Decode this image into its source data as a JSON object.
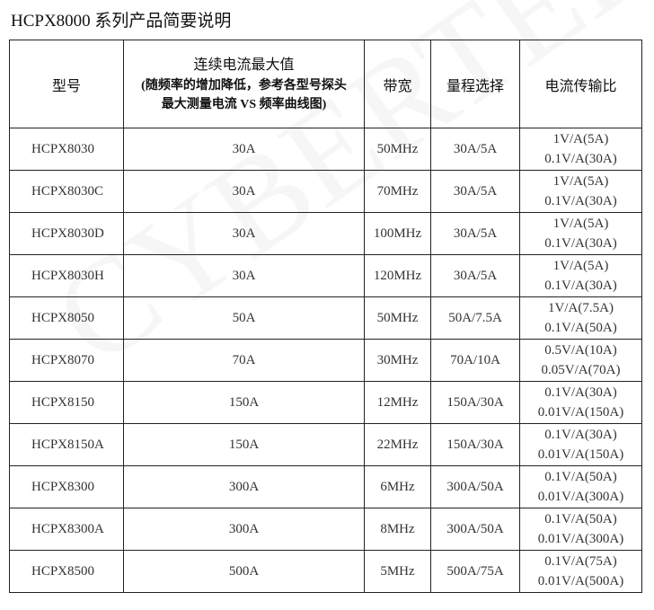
{
  "title": "HCPX8000 系列产品简要说明",
  "watermark": "CYBERTEK",
  "headers": {
    "model": "型号",
    "current_main": "连续电流最大值",
    "current_sub1": "(随频率的增加降低，参考各型号探头",
    "current_sub2": "最大测量电流 VS 频率曲线图)",
    "bandwidth": "带宽",
    "range": "量程选择",
    "ratio": "电流传输比"
  },
  "rows": [
    {
      "model": "HCPX8030",
      "current": "30A",
      "bandwidth": "50MHz",
      "range": "30A/5A",
      "ratio1": "1V/A(5A)",
      "ratio2": "0.1V/A(30A)"
    },
    {
      "model": "HCPX8030C",
      "current": "30A",
      "bandwidth": "70MHz",
      "range": "30A/5A",
      "ratio1": "1V/A(5A)",
      "ratio2": "0.1V/A(30A)"
    },
    {
      "model": "HCPX8030D",
      "current": "30A",
      "bandwidth": "100MHz",
      "range": "30A/5A",
      "ratio1": "1V/A(5A)",
      "ratio2": "0.1V/A(30A)"
    },
    {
      "model": "HCPX8030H",
      "current": "30A",
      "bandwidth": "120MHz",
      "range": "30A/5A",
      "ratio1": "1V/A(5A)",
      "ratio2": "0.1V/A(30A)"
    },
    {
      "model": "HCPX8050",
      "current": "50A",
      "bandwidth": "50MHz",
      "range": "50A/7.5A",
      "ratio1": "1V/A(7.5A)",
      "ratio2": "0.1V/A(50A)"
    },
    {
      "model": "HCPX8070",
      "current": "70A",
      "bandwidth": "30MHz",
      "range": "70A/10A",
      "ratio1": "0.5V/A(10A)",
      "ratio2": "0.05V/A(70A)"
    },
    {
      "model": "HCPX8150",
      "current": "150A",
      "bandwidth": "12MHz",
      "range": "150A/30A",
      "ratio1": "0.1V/A(30A)",
      "ratio2": "0.01V/A(150A)"
    },
    {
      "model": "HCPX8150A",
      "current": "150A",
      "bandwidth": "22MHz",
      "range": "150A/30A",
      "ratio1": "0.1V/A(30A)",
      "ratio2": "0.01V/A(150A)"
    },
    {
      "model": "HCPX8300",
      "current": "300A",
      "bandwidth": "6MHz",
      "range": "300A/50A",
      "ratio1": "0.1V/A(50A)",
      "ratio2": "0.01V/A(300A)"
    },
    {
      "model": "HCPX8300A",
      "current": "300A",
      "bandwidth": "8MHz",
      "range": "300A/50A",
      "ratio1": "0.1V/A(50A)",
      "ratio2": "0.01V/A(300A)"
    },
    {
      "model": "HCPX8500",
      "current": "500A",
      "bandwidth": "5MHz",
      "range": "500A/75A",
      "ratio1": "0.1V/A(75A)",
      "ratio2": "0.01V/A(500A)"
    }
  ]
}
